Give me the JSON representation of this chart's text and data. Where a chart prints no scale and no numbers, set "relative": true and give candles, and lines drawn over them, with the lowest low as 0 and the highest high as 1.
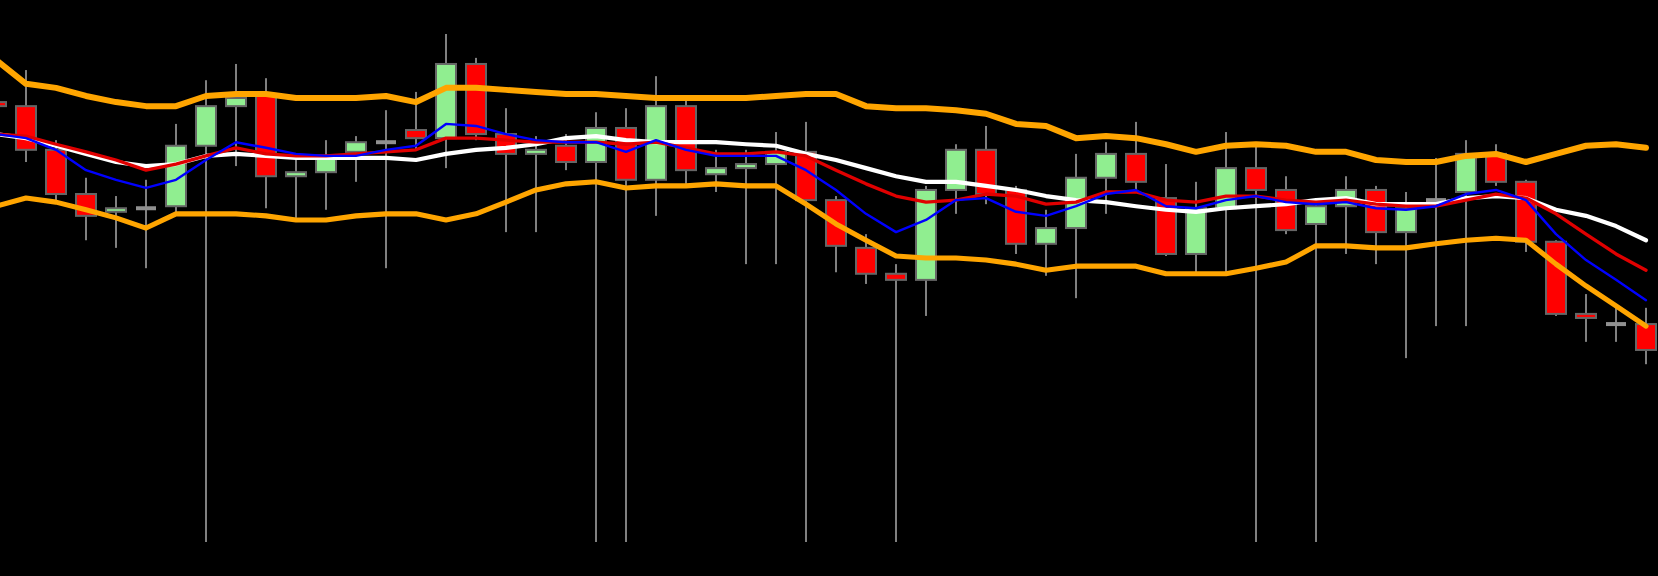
{
  "chart_data": {
    "type": "candlestick",
    "relative": true,
    "categories": [
      null,
      null,
      null,
      null,
      null,
      null,
      null,
      null,
      null,
      null,
      null,
      null,
      null,
      null,
      null,
      null,
      null,
      null,
      null,
      null,
      null,
      null,
      null,
      null,
      null,
      null,
      null,
      null,
      null,
      null,
      null,
      null,
      null,
      null,
      null,
      null,
      null,
      null,
      null,
      null,
      null,
      null,
      null,
      null,
      null,
      null,
      null,
      null,
      null,
      null,
      null,
      null,
      null,
      null,
      null,
      null
    ],
    "ohlc": [
      [
        0.866,
        0.866,
        0.858,
        0.858
      ],
      [
        0.858,
        0.929,
        0.748,
        0.772
      ],
      [
        0.772,
        0.791,
        0.673,
        0.685
      ],
      [
        0.685,
        0.717,
        0.594,
        0.642
      ],
      [
        0.65,
        0.681,
        0.579,
        0.657
      ],
      [
        0.657,
        0.713,
        0.539,
        0.657
      ],
      [
        0.661,
        0.823,
        0.646,
        0.78
      ],
      [
        0.78,
        0.909,
        0,
        0.858
      ],
      [
        0.858,
        0.941,
        0.74,
        0.874
      ],
      [
        0.882,
        0.913,
        0.657,
        0.72
      ],
      [
        0.72,
        0.76,
        0.638,
        0.728
      ],
      [
        0.728,
        0.791,
        0.654,
        0.76
      ],
      [
        0.768,
        0.799,
        0.709,
        0.787
      ],
      [
        0.787,
        0.85,
        0.539,
        0.787
      ],
      [
        0.811,
        0.886,
        0.772,
        0.795
      ],
      [
        0.795,
        1,
        0.736,
        0.941
      ],
      [
        0.941,
        0.953,
        0.791,
        0.803
      ],
      [
        0.803,
        0.854,
        0.61,
        0.764
      ],
      [
        0.764,
        0.799,
        0.61,
        0.772
      ],
      [
        0.78,
        0.803,
        0.732,
        0.748
      ],
      [
        0.748,
        0.846,
        0,
        0.815
      ],
      [
        0.815,
        0.854,
        0,
        0.713
      ],
      [
        0.713,
        0.917,
        0.642,
        0.858
      ],
      [
        0.858,
        0.874,
        0.705,
        0.732
      ],
      [
        0.724,
        0.772,
        0.689,
        0.736
      ],
      [
        0.736,
        0.772,
        0.547,
        0.744
      ],
      [
        0.744,
        0.807,
        0.547,
        0.768
      ],
      [
        0.768,
        0.827,
        0,
        0.673
      ],
      [
        0.673,
        0.681,
        0.531,
        0.583
      ],
      [
        0.579,
        0.606,
        0.508,
        0.528
      ],
      [
        0.528,
        0.547,
        0,
        0.516
      ],
      [
        0.516,
        0.701,
        0.445,
        0.693
      ],
      [
        0.693,
        0.783,
        0.646,
        0.772
      ],
      [
        0.772,
        0.819,
        0.665,
        0.685
      ],
      [
        0.693,
        0.701,
        0.567,
        0.587
      ],
      [
        0.587,
        0.654,
        0.524,
        0.618
      ],
      [
        0.618,
        0.764,
        0.48,
        0.717
      ],
      [
        0.717,
        0.787,
        0.646,
        0.764
      ],
      [
        0.764,
        0.827,
        0.693,
        0.709
      ],
      [
        0.677,
        0.744,
        0.563,
        0.567
      ],
      [
        0.567,
        0.709,
        0.528,
        0.657
      ],
      [
        0.657,
        0.807,
        0.528,
        0.736
      ],
      [
        0.736,
        0.78,
        0,
        0.693
      ],
      [
        0.693,
        0.72,
        0.606,
        0.614
      ],
      [
        0.626,
        0.677,
        0,
        0.661
      ],
      [
        0.661,
        0.72,
        0.567,
        0.693
      ],
      [
        0.693,
        0.701,
        0.547,
        0.61
      ],
      [
        0.61,
        0.689,
        0.362,
        0.657
      ],
      [
        0.673,
        0.756,
        0.425,
        0.673
      ],
      [
        0.689,
        0.791,
        0.425,
        0.764
      ],
      [
        0.764,
        0.783,
        0.701,
        0.709
      ],
      [
        0.709,
        0.713,
        0.571,
        0.591
      ],
      [
        0.591,
        0.594,
        0.445,
        0.449
      ],
      [
        0.449,
        0.488,
        0.394,
        0.441
      ],
      [
        0.429,
        0.461,
        0.394,
        0.429
      ],
      [
        0.429,
        0.461,
        0.35,
        0.378
      ]
    ],
    "series": [
      {
        "type": "line",
        "color": "#ffa500",
        "values": [
          0.949,
          0.902,
          0.894,
          0.878,
          0.866,
          0.858,
          0.858,
          0.878,
          0.882,
          0.882,
          0.874,
          0.874,
          0.874,
          0.878,
          0.866,
          0.894,
          0.894,
          0.89,
          0.886,
          0.882,
          0.882,
          0.878,
          0.874,
          0.874,
          0.874,
          0.874,
          0.878,
          0.882,
          0.882,
          0.858,
          0.854,
          0.854,
          0.85,
          0.843,
          0.823,
          0.819,
          0.795,
          0.799,
          0.795,
          0.783,
          0.768,
          0.78,
          0.783,
          0.78,
          0.768,
          0.768,
          0.752,
          0.748,
          0.748,
          0.76,
          0.764,
          0.748,
          0.764,
          0.78,
          0.783,
          0.776
        ]
      },
      {
        "type": "line",
        "color": "#ffa500",
        "values": [
          0.661,
          0.677,
          0.669,
          0.654,
          0.638,
          0.618,
          0.646,
          0.646,
          0.646,
          0.642,
          0.634,
          0.634,
          0.642,
          0.646,
          0.646,
          0.634,
          0.646,
          0.669,
          0.693,
          0.705,
          0.709,
          0.697,
          0.701,
          0.701,
          0.705,
          0.701,
          0.701,
          0.665,
          0.626,
          0.594,
          0.563,
          0.559,
          0.559,
          0.555,
          0.547,
          0.535,
          0.543,
          0.543,
          0.543,
          0.528,
          0.528,
          0.528,
          0.539,
          0.551,
          0.583,
          0.583,
          0.579,
          0.579,
          0.587,
          0.594,
          0.598,
          0.594,
          0.547,
          0.504,
          0.465,
          0.425
        ]
      },
      {
        "type": "line",
        "color": "#ffffff",
        "values": [
          0.803,
          0.795,
          0.78,
          0.764,
          0.748,
          0.74,
          0.744,
          0.76,
          0.764,
          0.76,
          0.756,
          0.756,
          0.756,
          0.756,
          0.752,
          0.764,
          0.772,
          0.776,
          0.783,
          0.795,
          0.799,
          0.791,
          0.787,
          0.787,
          0.787,
          0.783,
          0.78,
          0.764,
          0.752,
          0.736,
          0.72,
          0.709,
          0.709,
          0.701,
          0.693,
          0.681,
          0.673,
          0.669,
          0.661,
          0.654,
          0.65,
          0.657,
          0.661,
          0.665,
          0.673,
          0.677,
          0.665,
          0.665,
          0.665,
          0.677,
          0.681,
          0.677,
          0.654,
          0.642,
          0.622,
          0.594
        ]
      },
      {
        "type": "line",
        "color": "#e00000",
        "values": [
          0.803,
          0.799,
          0.783,
          0.768,
          0.752,
          0.732,
          0.744,
          0.76,
          0.776,
          0.764,
          0.76,
          0.76,
          0.764,
          0.768,
          0.772,
          0.795,
          0.795,
          0.791,
          0.787,
          0.787,
          0.787,
          0.783,
          0.787,
          0.776,
          0.764,
          0.764,
          0.768,
          0.76,
          0.732,
          0.705,
          0.681,
          0.669,
          0.673,
          0.685,
          0.681,
          0.665,
          0.669,
          0.689,
          0.689,
          0.673,
          0.669,
          0.681,
          0.681,
          0.673,
          0.669,
          0.673,
          0.665,
          0.661,
          0.661,
          0.673,
          0.685,
          0.677,
          0.646,
          0.606,
          0.567,
          0.535
        ]
      },
      {
        "type": "line",
        "color": "#0000ff",
        "values": [
          0.803,
          0.795,
          0.772,
          0.732,
          0.713,
          0.697,
          0.713,
          0.752,
          0.787,
          0.776,
          0.764,
          0.76,
          0.76,
          0.772,
          0.78,
          0.823,
          0.819,
          0.803,
          0.791,
          0.787,
          0.787,
          0.768,
          0.791,
          0.772,
          0.76,
          0.76,
          0.76,
          0.732,
          0.693,
          0.646,
          0.61,
          0.634,
          0.673,
          0.677,
          0.65,
          0.642,
          0.661,
          0.685,
          0.693,
          0.661,
          0.657,
          0.673,
          0.681,
          0.669,
          0.665,
          0.669,
          0.657,
          0.654,
          0.661,
          0.685,
          0.693,
          0.673,
          0.606,
          0.555,
          0.516,
          0.476
        ]
      }
    ]
  }
}
